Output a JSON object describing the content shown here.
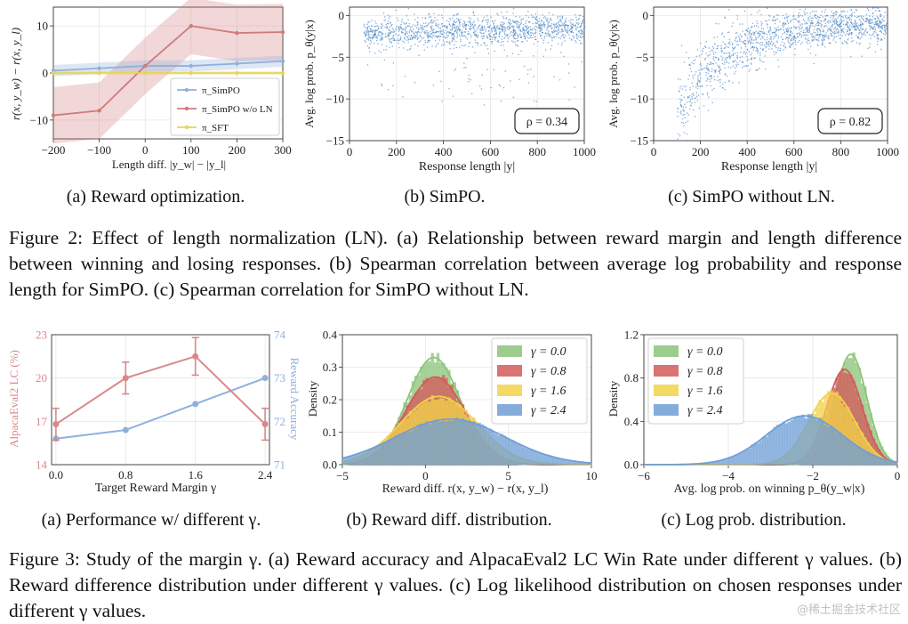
{
  "figure2": {
    "panel_a": {
      "ylabel": "r(x, y_w) − r(x, y_l)",
      "xlabel": "Length diff. |y_w| − |y_l|",
      "legend": [
        "π_SimPO",
        "π_SimPO w/o LN",
        "π_SFT"
      ],
      "subcaption": "(a) Reward optimization."
    },
    "panel_b": {
      "ylabel": "Avg. log prob. p_θ(y|x)",
      "xlabel": "Response length |y|",
      "annotation": "ρ = 0.34",
      "subcaption": "(b) SimPO."
    },
    "panel_c": {
      "ylabel": "Avg. log prob. p_θ(y|x)",
      "xlabel": "Response length |y|",
      "annotation": "ρ = 0.82",
      "subcaption": "(c) SimPO without LN."
    },
    "caption": "Figure 2: Effect of length normalization (LN). (a) Relationship between reward margin and length difference between winning and losing responses. (b) Spearman correlation between average log probability and response length for SimPO. (c) Spearman correlation for SimPO without LN."
  },
  "figure3": {
    "panel_a": {
      "ylabel_left": "AlpacaEval2 LC (%)",
      "ylabel_right": "Reward Accuracy",
      "xlabel": "Target Reward Margin γ",
      "subcaption": "(a) Performance w/ different γ."
    },
    "panel_b": {
      "ylabel": "Density",
      "xlabel": "Reward diff. r(x, y_w) − r(x, y_l)",
      "legend": [
        "γ = 0.0",
        "γ = 0.8",
        "γ = 1.6",
        "γ = 2.4"
      ],
      "subcaption": "(b) Reward diff. distribution."
    },
    "panel_c": {
      "ylabel": "Density",
      "xlabel": "Avg. log prob. on winning p_θ(y_w|x)",
      "legend": [
        "γ = 0.0",
        "γ = 0.8",
        "γ = 1.6",
        "γ = 2.4"
      ],
      "subcaption": "(c) Log prob. distribution."
    },
    "caption": "Figure 3: Study of the margin γ. (a) Reward accuracy and AlpacaEval2 LC Win Rate under different γ values. (b) Reward difference distribution under different γ values. (c) Log likelihood distribution on chosen responses under different γ values."
  },
  "watermark": "@稀土掘金技术社区",
  "colors": {
    "simpo": "#8fb0dc",
    "simpo_noln": "#d07b7b",
    "sft": "#e8d45a",
    "g0": "#8cc47a",
    "g08": "#d45a5a",
    "g16": "#f2d24a",
    "g24": "#6f9fd6",
    "lc_line": "#d9888a",
    "acc_line": "#8fb0dc"
  },
  "chart_data": [
    {
      "type": "line",
      "x": [
        -200,
        -100,
        0,
        100,
        200,
        300
      ],
      "series": [
        {
          "name": "π_SimPO",
          "values": [
            0.5,
            1,
            1.5,
            1.5,
            2,
            2.5
          ]
        },
        {
          "name": "π_SimPO w/o LN",
          "values": [
            -9,
            -8,
            1.5,
            10,
            8.5,
            8.7
          ]
        },
        {
          "name": "π_SFT",
          "values": [
            0,
            0,
            0,
            0,
            0,
            0
          ]
        }
      ],
      "xlim": [
        -200,
        300
      ],
      "ylim": [
        -14,
        14
      ],
      "xticks": [
        -200,
        -100,
        0,
        100,
        200,
        300
      ],
      "yticks": [
        -10,
        0,
        10
      ],
      "legend_position": "lower-right",
      "grid": true
    },
    {
      "type": "scatter",
      "xlim": [
        0,
        1000
      ],
      "ylim": [
        -15,
        1
      ],
      "xticks": [
        0,
        200,
        400,
        600,
        800,
        1000
      ],
      "yticks": [
        -15,
        -10,
        -5,
        0
      ],
      "trend": {
        "x": [
          60,
          1000
        ],
        "y_center": [
          -2,
          -1.5
        ]
      },
      "grid": true
    },
    {
      "type": "scatter",
      "xlim": [
        0,
        1000
      ],
      "ylim": [
        -15,
        1
      ],
      "xticks": [
        0,
        200,
        400,
        600,
        800,
        1000
      ],
      "yticks": [
        -15,
        -10,
        -5,
        0
      ],
      "trend": {
        "x": [
          100,
          1000
        ],
        "y_center": [
          -12,
          -1
        ]
      },
      "grid": true
    },
    {
      "type": "line",
      "categories": [
        "0.0",
        "0.8",
        "1.6",
        "2.4"
      ],
      "series": [
        {
          "axis": "left",
          "values": [
            16.8,
            20,
            21.5,
            16.8
          ],
          "errors": [
            1.1,
            1.1,
            1.3,
            1.1
          ]
        },
        {
          "axis": "right",
          "values": [
            71.6,
            71.8,
            72.4,
            73.0
          ]
        }
      ],
      "ylim_left": [
        14,
        23
      ],
      "yticks_left": [
        14,
        17,
        20,
        23
      ],
      "ylim_right": [
        71,
        74
      ],
      "yticks_right": [
        71,
        72,
        73,
        74
      ],
      "grid": true
    },
    {
      "type": "area",
      "xlim": [
        -5,
        10
      ],
      "ylim": [
        0,
        0.4
      ],
      "xticks": [
        -5,
        0,
        5,
        10
      ],
      "yticks": [
        0.0,
        0.1,
        0.2,
        0.3,
        0.4
      ],
      "series": [
        {
          "name": "γ = 0.0",
          "mu": 0.5,
          "sigma": 1.6,
          "peak": 0.33
        },
        {
          "name": "γ = 0.8",
          "mu": 0.6,
          "sigma": 1.8,
          "peak": 0.27
        },
        {
          "name": "γ = 1.6",
          "mu": 0.8,
          "sigma": 2.3,
          "peak": 0.21
        },
        {
          "name": "γ = 2.4",
          "mu": 1.5,
          "sigma": 3.3,
          "peak": 0.14
        }
      ],
      "legend_position": "top-right",
      "grid": true
    },
    {
      "type": "area",
      "xlim": [
        -6,
        0
      ],
      "ylim": [
        0,
        1.2
      ],
      "xticks": [
        -6,
        -4,
        -2,
        0
      ],
      "yticks": [
        0.0,
        0.4,
        0.8,
        1.2
      ],
      "series": [
        {
          "name": "γ = 0.0",
          "mu": -1.1,
          "sigma": 0.38,
          "peak": 1.02
        },
        {
          "name": "γ = 0.8",
          "mu": -1.25,
          "sigma": 0.42,
          "peak": 0.88
        },
        {
          "name": "γ = 1.6",
          "mu": -1.55,
          "sigma": 0.55,
          "peak": 0.66
        },
        {
          "name": "γ = 2.4",
          "mu": -2.2,
          "sigma": 0.9,
          "peak": 0.45
        }
      ],
      "legend_position": "top-left",
      "grid": true
    }
  ]
}
